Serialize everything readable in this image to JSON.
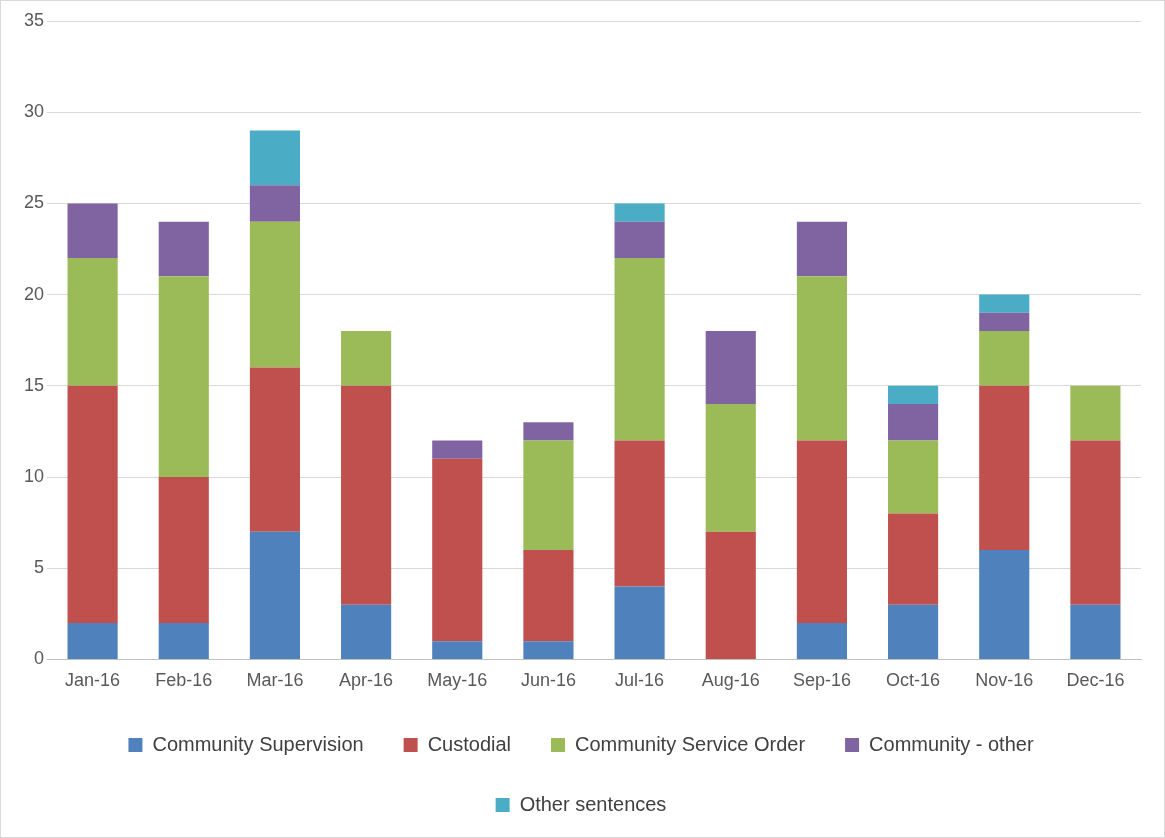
{
  "chart_data": {
    "type": "bar",
    "stacked": true,
    "categories": [
      "Jan-16",
      "Feb-16",
      "Mar-16",
      "Apr-16",
      "May-16",
      "Jun-16",
      "Jul-16",
      "Aug-16",
      "Sep-16",
      "Oct-16",
      "Nov-16",
      "Dec-16"
    ],
    "series": [
      {
        "name": "Community Supervision",
        "color": "#4f81bd",
        "values": [
          2,
          2,
          7,
          3,
          1,
          1,
          4,
          0,
          2,
          3,
          6,
          3
        ]
      },
      {
        "name": "Custodial",
        "color": "#c0504d",
        "values": [
          13,
          8,
          9,
          12,
          10,
          5,
          8,
          7,
          10,
          5,
          9,
          9
        ]
      },
      {
        "name": "Community Service Order",
        "color": "#9bbb59",
        "values": [
          7,
          11,
          8,
          3,
          0,
          6,
          10,
          7,
          9,
          4,
          3,
          3
        ]
      },
      {
        "name": "Community - other",
        "color": "#8064a2",
        "values": [
          3,
          3,
          2,
          0,
          1,
          1,
          2,
          4,
          3,
          2,
          1,
          0
        ]
      },
      {
        "name": "Other sentences",
        "color": "#4bacc6",
        "values": [
          0,
          0,
          3,
          0,
          0,
          0,
          1,
          0,
          0,
          1,
          1,
          0
        ]
      }
    ],
    "ylim": [
      0,
      35
    ],
    "yticks": [
      0,
      5,
      10,
      15,
      20,
      25,
      30,
      35
    ],
    "grid": "y",
    "legend": "bottom"
  }
}
